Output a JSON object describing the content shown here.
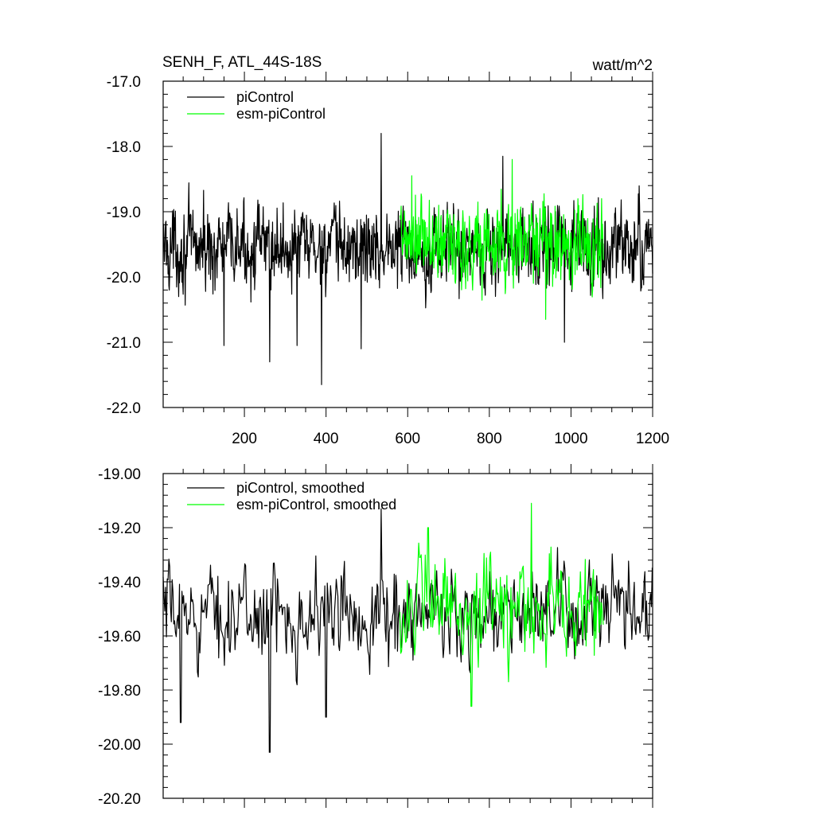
{
  "chart_data": [
    {
      "type": "line",
      "title": "SENH_F, ATL_44S-18S",
      "units": "watt/m^2",
      "ylim": [
        -22.0,
        -17.0
      ],
      "yticks": [
        "-17.0",
        "-18.0",
        "-19.0",
        "-20.0",
        "-21.0",
        "-22.0"
      ],
      "yticks_values": [
        -17.0,
        -18.0,
        -19.0,
        -20.0,
        -21.0,
        -22.0
      ],
      "xlim": [
        1,
        1200
      ],
      "xticks": [
        "200",
        "400",
        "600",
        "800",
        "1000",
        "1200"
      ],
      "xticks_values": [
        200,
        400,
        600,
        800,
        1000,
        1200
      ],
      "grid": false,
      "legend": "top-left",
      "series": [
        {
          "name": "piControl",
          "color": "#000000",
          "x_start": 1,
          "x_step": 1,
          "mean": -19.55,
          "amplitude": 0.45,
          "count": 1200,
          "notable_points": [
            {
              "x": 150,
              "y": -21.05
            },
            {
              "x": 262,
              "y": -21.3
            },
            {
              "x": 329,
              "y": -21.05
            },
            {
              "x": 389,
              "y": -21.65
            },
            {
              "x": 486,
              "y": -21.1
            },
            {
              "x": 535,
              "y": -17.8
            },
            {
              "x": 833,
              "y": -18.15
            },
            {
              "x": 984,
              "y": -21.0
            }
          ]
        },
        {
          "name": "esm-piControl",
          "color": "#00ff00",
          "x_start": 581,
          "x_step": 1,
          "mean": -19.5,
          "amplitude": 0.5,
          "count": 500,
          "notable_points": [
            {
              "x": 856,
              "y": -18.2
            },
            {
              "x": 938,
              "y": -20.65
            },
            {
              "x": 610,
              "y": -18.45
            }
          ]
        }
      ]
    },
    {
      "type": "line",
      "title": "",
      "ylim": [
        -20.2,
        -19.0
      ],
      "yticks": [
        "-19.00",
        "-19.20",
        "-19.40",
        "-19.60",
        "-19.80",
        "-20.00",
        "-20.20"
      ],
      "yticks_values": [
        -19.0,
        -19.2,
        -19.4,
        -19.6,
        -19.8,
        -20.0,
        -20.2
      ],
      "xlim": [
        1,
        1200
      ],
      "grid": false,
      "legend": "top-left",
      "series": [
        {
          "name": "piControl, smoothed",
          "color": "#000000",
          "x_start": 1,
          "x_step": 2,
          "mean": -19.52,
          "amplitude": 0.12,
          "count": 600,
          "notable_points": [
            {
              "x": 44,
              "y": -19.92
            },
            {
              "x": 262,
              "y": -20.03
            },
            {
              "x": 535,
              "y": -19.13
            },
            {
              "x": 400,
              "y": -19.9
            }
          ]
        },
        {
          "name": "esm-piControl, smoothed",
          "color": "#00ff00",
          "x_start": 581,
          "x_step": 2,
          "mean": -19.5,
          "amplitude": 0.14,
          "count": 250,
          "notable_points": [
            {
              "x": 756,
              "y": -19.86
            },
            {
              "x": 903,
              "y": -19.11
            },
            {
              "x": 650,
              "y": -19.2
            }
          ]
        }
      ]
    }
  ]
}
